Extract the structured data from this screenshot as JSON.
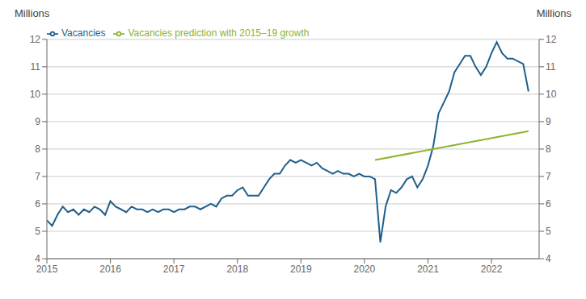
{
  "chart_data": {
    "type": "line",
    "ylabel": "Millions",
    "y2label": "Millions",
    "xlim": [
      2015.0,
      2022.75
    ],
    "xticks": [
      2015,
      2016,
      2017,
      2018,
      2019,
      2020,
      2021,
      2022
    ],
    "ylim": [
      4,
      12
    ],
    "yticks": [
      4,
      5,
      6,
      7,
      8,
      9,
      10,
      11,
      12
    ],
    "y2lim": [
      4,
      12
    ],
    "y2ticks": [
      4,
      5,
      6,
      7,
      8,
      9,
      10,
      11,
      12
    ],
    "grid": true,
    "legend": "upper left",
    "series": [
      {
        "name": "Vacancies",
        "color": "#1f5f8b",
        "x": [
          2015.0,
          2015.083,
          2015.167,
          2015.25,
          2015.333,
          2015.417,
          2015.5,
          2015.583,
          2015.667,
          2015.75,
          2015.833,
          2015.917,
          2016.0,
          2016.083,
          2016.167,
          2016.25,
          2016.333,
          2016.417,
          2016.5,
          2016.583,
          2016.667,
          2016.75,
          2016.833,
          2016.917,
          2017.0,
          2017.083,
          2017.167,
          2017.25,
          2017.333,
          2017.417,
          2017.5,
          2017.583,
          2017.667,
          2017.75,
          2017.833,
          2017.917,
          2018.0,
          2018.083,
          2018.167,
          2018.25,
          2018.333,
          2018.417,
          2018.5,
          2018.583,
          2018.667,
          2018.75,
          2018.833,
          2018.917,
          2019.0,
          2019.083,
          2019.167,
          2019.25,
          2019.333,
          2019.417,
          2019.5,
          2019.583,
          2019.667,
          2019.75,
          2019.833,
          2019.917,
          2020.0,
          2020.083,
          2020.167,
          2020.25,
          2020.333,
          2020.417,
          2020.5,
          2020.583,
          2020.667,
          2020.75,
          2020.833,
          2020.917,
          2021.0,
          2021.083,
          2021.167,
          2021.25,
          2021.333,
          2021.417,
          2021.5,
          2021.583,
          2021.667,
          2021.75,
          2021.833,
          2021.917,
          2022.0,
          2022.083,
          2022.167,
          2022.25,
          2022.333,
          2022.5,
          2022.583
        ],
        "values": [
          5.4,
          5.2,
          5.6,
          5.9,
          5.7,
          5.8,
          5.6,
          5.8,
          5.7,
          5.9,
          5.8,
          5.6,
          6.1,
          5.9,
          5.8,
          5.7,
          5.9,
          5.8,
          5.8,
          5.7,
          5.8,
          5.7,
          5.8,
          5.8,
          5.7,
          5.8,
          5.8,
          5.9,
          5.9,
          5.8,
          5.9,
          6.0,
          5.9,
          6.2,
          6.3,
          6.3,
          6.5,
          6.6,
          6.3,
          6.3,
          6.3,
          6.6,
          6.9,
          7.1,
          7.1,
          7.4,
          7.6,
          7.5,
          7.6,
          7.5,
          7.4,
          7.5,
          7.3,
          7.2,
          7.1,
          7.2,
          7.1,
          7.1,
          7.0,
          7.1,
          7.0,
          7.0,
          6.9,
          4.6,
          5.9,
          6.5,
          6.4,
          6.6,
          6.9,
          7.0,
          6.6,
          6.9,
          7.4,
          8.1,
          9.3,
          9.7,
          10.1,
          10.8,
          11.1,
          11.4,
          11.4,
          11.0,
          10.7,
          11.0,
          11.5,
          11.9,
          11.5,
          11.3,
          11.3,
          11.1,
          10.1
        ]
      },
      {
        "name": "Vacancies prediction with 2015–19 growth",
        "color": "#8db32e",
        "x": [
          2020.167,
          2022.583
        ],
        "values": [
          7.6,
          8.65
        ]
      }
    ]
  }
}
